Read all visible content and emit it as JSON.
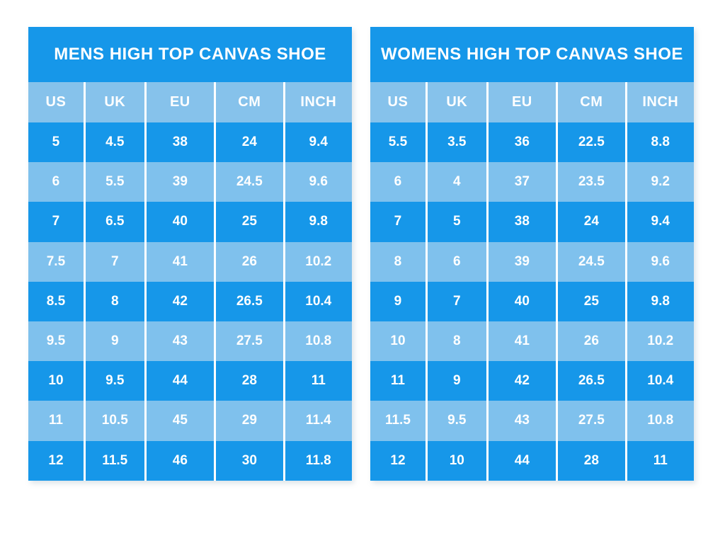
{
  "page": {
    "background": "#ffffff"
  },
  "colors": {
    "primary_blue": "#1697E9",
    "light_blue": "#7FC1ED",
    "header_blue": "#86C2EB",
    "text_white": "#ffffff"
  },
  "chart_data": [
    {
      "type": "table",
      "title": "MENS HIGH TOP CANVAS SHOE",
      "columns": [
        "US",
        "UK",
        "EU",
        "CM",
        "INCH"
      ],
      "rows": [
        [
          "5",
          "4.5",
          "38",
          "24",
          "9.4"
        ],
        [
          "6",
          "5.5",
          "39",
          "24.5",
          "9.6"
        ],
        [
          "7",
          "6.5",
          "40",
          "25",
          "9.8"
        ],
        [
          "7.5",
          "7",
          "41",
          "26",
          "10.2"
        ],
        [
          "8.5",
          "8",
          "42",
          "26.5",
          "10.4"
        ],
        [
          "9.5",
          "9",
          "43",
          "27.5",
          "10.8"
        ],
        [
          "10",
          "9.5",
          "44",
          "28",
          "11"
        ],
        [
          "11",
          "10.5",
          "45",
          "29",
          "11.4"
        ],
        [
          "12",
          "11.5",
          "46",
          "30",
          "11.8"
        ]
      ]
    },
    {
      "type": "table",
      "title": "WOMENS HIGH TOP CANVAS SHOE",
      "columns": [
        "US",
        "UK",
        "EU",
        "CM",
        "INCH"
      ],
      "rows": [
        [
          "5.5",
          "3.5",
          "36",
          "22.5",
          "8.8"
        ],
        [
          "6",
          "4",
          "37",
          "23.5",
          "9.2"
        ],
        [
          "7",
          "5",
          "38",
          "24",
          "9.4"
        ],
        [
          "8",
          "6",
          "39",
          "24.5",
          "9.6"
        ],
        [
          "9",
          "7",
          "40",
          "25",
          "9.8"
        ],
        [
          "10",
          "8",
          "41",
          "26",
          "10.2"
        ],
        [
          "11",
          "9",
          "42",
          "26.5",
          "10.4"
        ],
        [
          "11.5",
          "9.5",
          "43",
          "27.5",
          "10.8"
        ],
        [
          "12",
          "10",
          "44",
          "28",
          "11"
        ]
      ]
    }
  ]
}
